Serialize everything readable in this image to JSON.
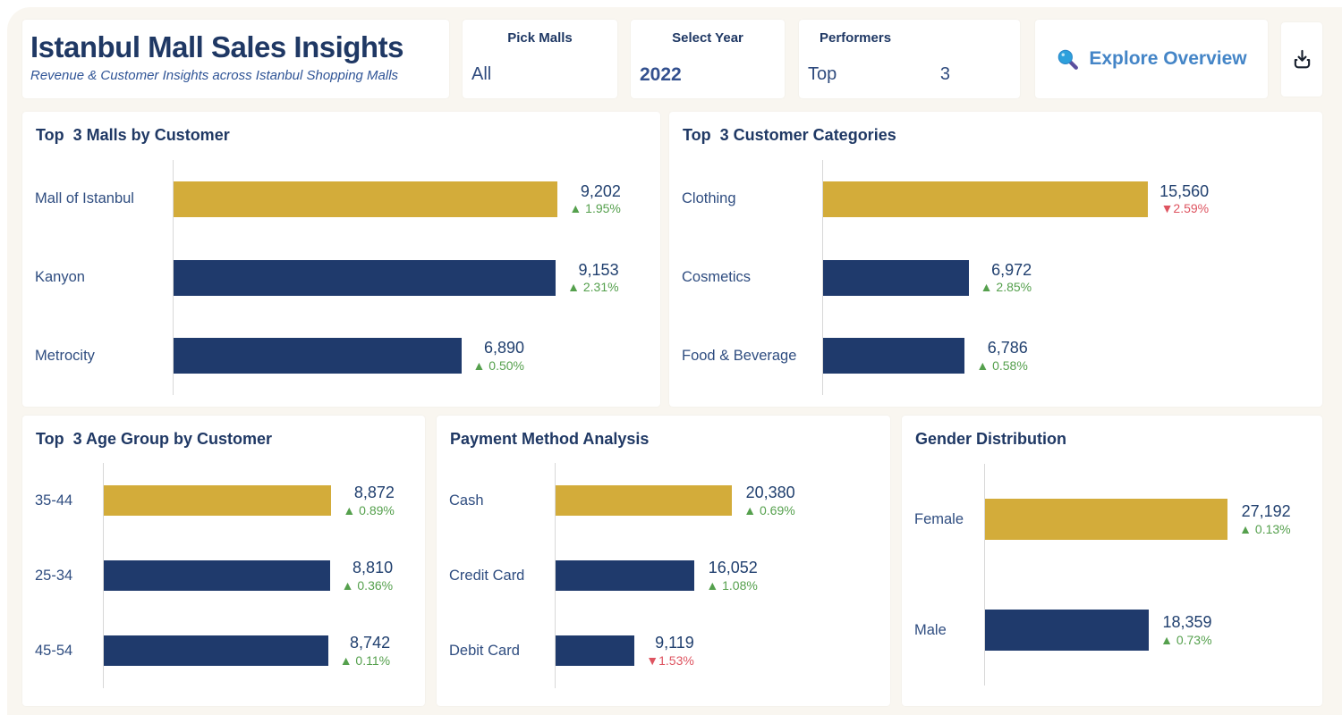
{
  "header": {
    "title": "Istanbul Mall Sales Insights",
    "subtitle": "Revenue & Customer Insights across Istanbul Shopping Malls",
    "filters": {
      "pick_malls": {
        "label": "Pick Malls",
        "value": "All"
      },
      "select_year": {
        "label": "Select Year",
        "value": "2022"
      },
      "performers": {
        "label": "Performers",
        "value_left": "Top",
        "value_right": "3"
      }
    },
    "explore_button_label": "Explore Overview",
    "icons": {
      "explore": "magnifier-icon",
      "download": "download-icon"
    }
  },
  "colors": {
    "canvas_bg": "#f9f6f0",
    "card_bg": "#ffffff",
    "title_navy": "#1f3864",
    "bar_highlight": "#d3ac3a",
    "bar_default": "#1f3a6c",
    "value_text": "#21406f",
    "label_text": "#2f4d80",
    "delta_up": "#55a04d",
    "delta_down": "#de5460",
    "explore_blue": "#4485c7",
    "axis_line": "#d8d8d8"
  },
  "chart_data": [
    {
      "type": "bar",
      "orientation": "horizontal",
      "title": "Top  3 Malls by Customer",
      "categories": [
        "Mall of Istanbul",
        "Kanyon",
        "Metrocity"
      ],
      "values": [
        9202,
        9153,
        6890
      ],
      "value_labels": [
        "9,202",
        "9,153",
        "6,890"
      ],
      "deltas": [
        "▲ 1.95%",
        "▲ 2.31%",
        "▲ 0.50%"
      ],
      "trends": [
        "up",
        "up",
        "up"
      ],
      "xlim": [
        0,
        11400
      ],
      "highlight_index": 0,
      "grid": false,
      "legend": false
    },
    {
      "type": "bar",
      "orientation": "horizontal",
      "title": "Top  3 Customer Categories",
      "categories": [
        "Clothing",
        "Cosmetics",
        "Food & Beverage"
      ],
      "values": [
        15560,
        6972,
        6786
      ],
      "value_labels": [
        "15,560",
        "6,972",
        "6,786"
      ],
      "deltas": [
        "▼2.59%",
        "▲ 2.85%",
        "▲ 0.58%"
      ],
      "trends": [
        "down",
        "up",
        "up"
      ],
      "xlim": [
        0,
        23400
      ],
      "highlight_index": 0,
      "grid": false,
      "legend": false
    },
    {
      "type": "bar",
      "orientation": "horizontal",
      "title": "Top  3 Age Group by Customer",
      "categories": [
        "35-44",
        "25-34",
        "45-54"
      ],
      "values": [
        8872,
        8810,
        8742
      ],
      "value_labels": [
        "8,872",
        "8,810",
        "8,742"
      ],
      "deltas": [
        "▲ 0.89%",
        "▲ 0.36%",
        "▲ 0.11%"
      ],
      "trends": [
        "up",
        "up",
        "up"
      ],
      "xlim": [
        0,
        12100
      ],
      "highlight_index": 0,
      "grid": false,
      "legend": false
    },
    {
      "type": "bar",
      "orientation": "horizontal",
      "title": "Payment Method Analysis",
      "categories": [
        "Cash",
        "Credit Card",
        "Debit Card"
      ],
      "values": [
        20380,
        16052,
        9119
      ],
      "value_labels": [
        "20,380",
        "16,052",
        "9,119"
      ],
      "deltas": [
        "▲ 0.69%",
        "▲ 1.08%",
        "▼1.53%"
      ],
      "trends": [
        "up",
        "up",
        "down"
      ],
      "xlim": [
        0,
        37400
      ],
      "highlight_index": 0,
      "grid": false,
      "legend": false
    },
    {
      "type": "bar",
      "orientation": "horizontal",
      "title": "Gender Distribution",
      "categories": [
        "Female",
        "Male"
      ],
      "values": [
        27192,
        18359
      ],
      "value_labels": [
        "27,192",
        "18,359"
      ],
      "deltas": [
        "▲ 0.13%",
        "▲ 0.73%"
      ],
      "trends": [
        "up",
        "up"
      ],
      "xlim": [
        0,
        36600
      ],
      "highlight_index": 0,
      "grid": false,
      "legend": false
    }
  ]
}
